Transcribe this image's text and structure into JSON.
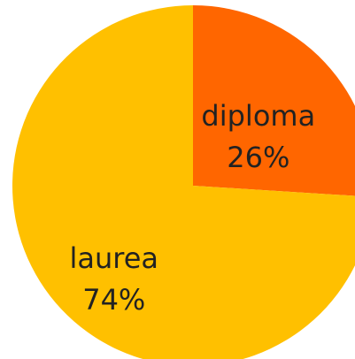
{
  "chart_data": {
    "type": "pie",
    "categories": [
      "diploma",
      "laurea"
    ],
    "values": [
      26,
      74
    ],
    "value_labels": [
      "26%",
      "74%"
    ],
    "colors": [
      "#ff6600",
      "#ffc000"
    ]
  }
}
